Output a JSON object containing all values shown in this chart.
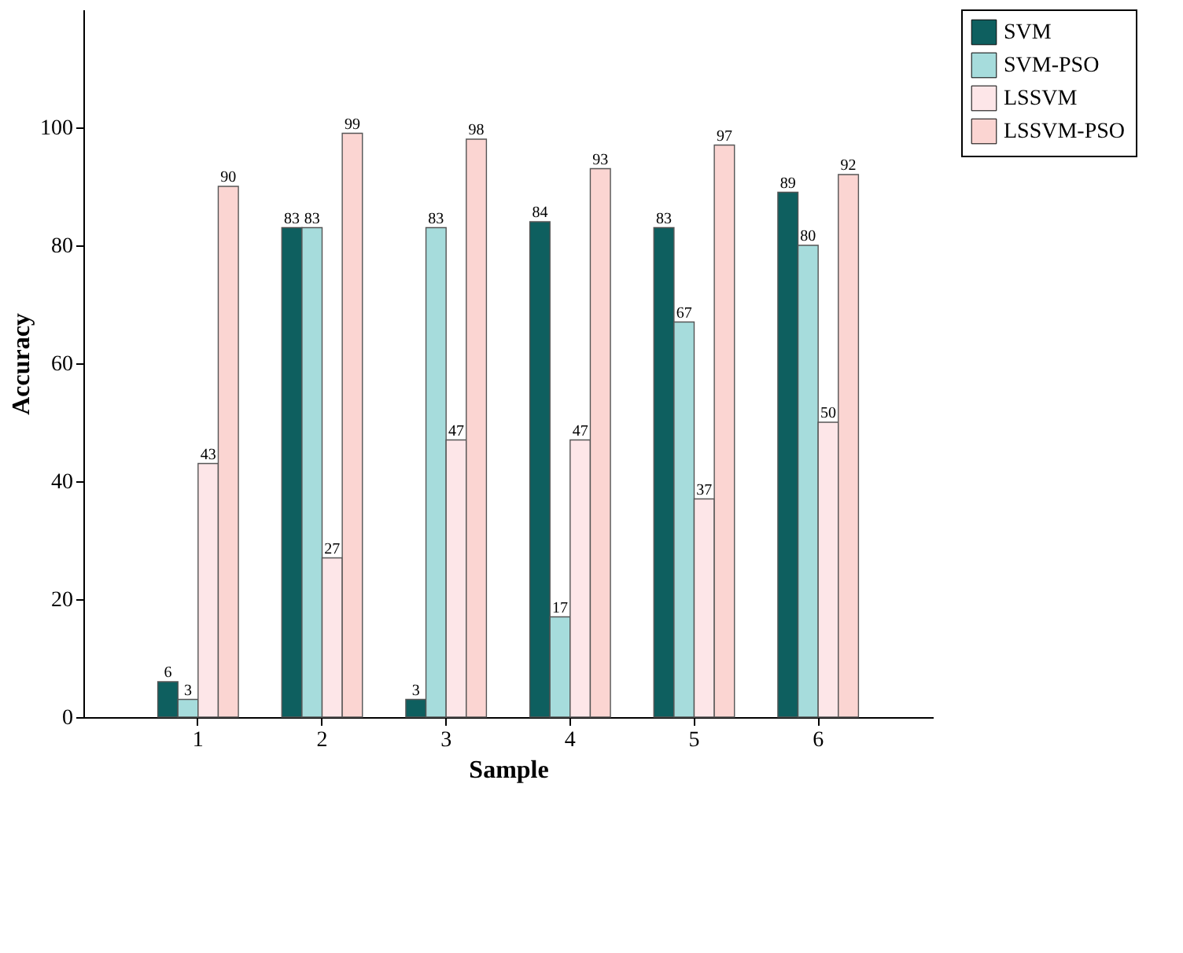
{
  "chart_data": {
    "type": "bar",
    "xlabel": "Sample",
    "ylabel": "Accuracy",
    "categories": [
      "1",
      "2",
      "3",
      "4",
      "5",
      "6"
    ],
    "series": [
      {
        "name": "SVM",
        "color": "#0e5f5f",
        "values": [
          6,
          83,
          3,
          84,
          83,
          89
        ]
      },
      {
        "name": "SVM-PSO",
        "color": "#a6dcdc",
        "values": [
          3,
          83,
          83,
          17,
          67,
          80
        ]
      },
      {
        "name": "LSSVM",
        "color": "#fde6e8",
        "values": [
          43,
          27,
          47,
          47,
          37,
          50
        ]
      },
      {
        "name": "LSSVM-PSO",
        "color": "#fbd5d2",
        "values": [
          90,
          99,
          98,
          93,
          97,
          92
        ]
      }
    ],
    "ylim": [
      0,
      120
    ],
    "yticks": [
      0,
      20,
      40,
      60,
      80,
      100
    ],
    "grid": false,
    "legend": "top right",
    "data_labels": true
  }
}
